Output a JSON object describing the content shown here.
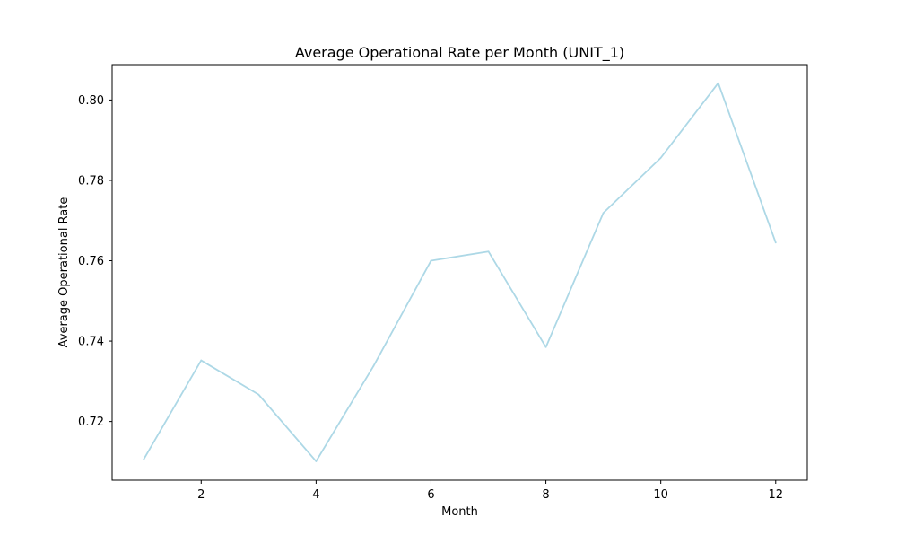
{
  "chart_data": {
    "type": "line",
    "title": "Average Operational Rate per Month (UNIT_1)",
    "xlabel": "Month",
    "ylabel": "Average Operational Rate",
    "x": [
      1,
      2,
      3,
      4,
      5,
      6,
      7,
      8,
      9,
      10,
      11,
      12
    ],
    "series": [
      {
        "values": [
          0.7106,
          0.7352,
          0.7267,
          0.7101,
          0.7338,
          0.76,
          0.7623,
          0.7385,
          0.7719,
          0.7856,
          0.8042,
          0.7645
        ],
        "color": "#add8e6"
      }
    ],
    "xlim": [
      0.45,
      12.55
    ],
    "ylim": [
      0.7054,
      0.8088
    ],
    "xticks": [
      2,
      4,
      6,
      8,
      10,
      12
    ],
    "xtick_labels": [
      "2",
      "4",
      "6",
      "8",
      "10",
      "12"
    ],
    "yticks": [
      0.72,
      0.74,
      0.76,
      0.78,
      0.8
    ],
    "ytick_labels": [
      "0.72",
      "0.74",
      "0.76",
      "0.78",
      "0.80"
    ],
    "grid": false,
    "legend": "none"
  }
}
